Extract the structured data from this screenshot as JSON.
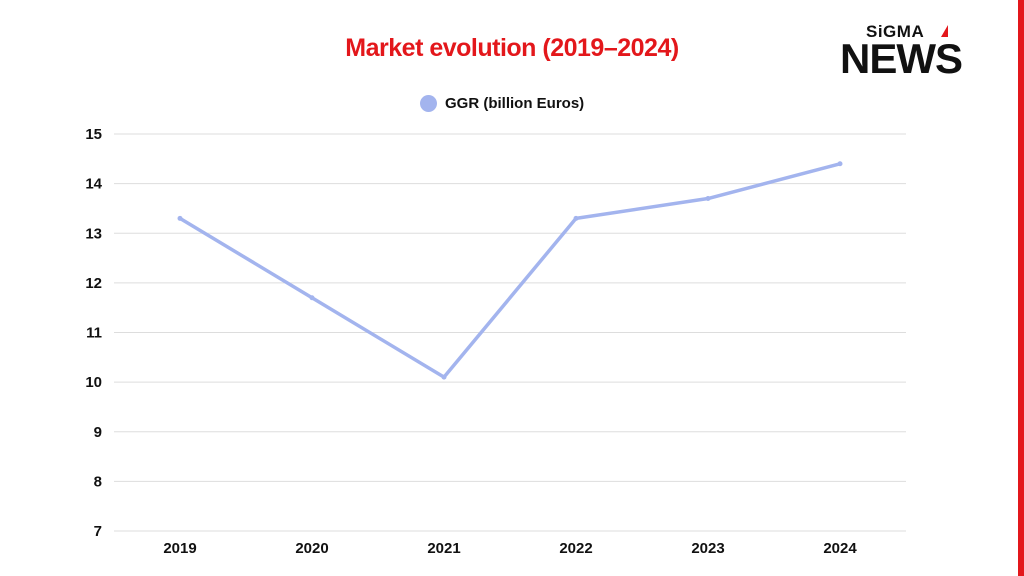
{
  "brand": {
    "logo_top": "SiGMA",
    "logo_bottom": "NEWS",
    "accent_color": "#e3171b"
  },
  "chart_data": {
    "type": "line",
    "title": "Market evolution (2019–2024)",
    "xlabel": "",
    "ylabel": "",
    "categories": [
      "2019",
      "2020",
      "2021",
      "2022",
      "2023",
      "2024"
    ],
    "series": [
      {
        "name": "GGR (billion Euros)",
        "values": [
          13.3,
          11.7,
          10.1,
          13.3,
          13.7,
          14.4
        ],
        "color": "#a3b4ee"
      }
    ],
    "ylim": [
      7,
      15
    ],
    "yticks": [
      "7",
      "8",
      "9",
      "10",
      "11",
      "12",
      "13",
      "14",
      "15"
    ],
    "grid": true,
    "legend_position": "top-center"
  }
}
